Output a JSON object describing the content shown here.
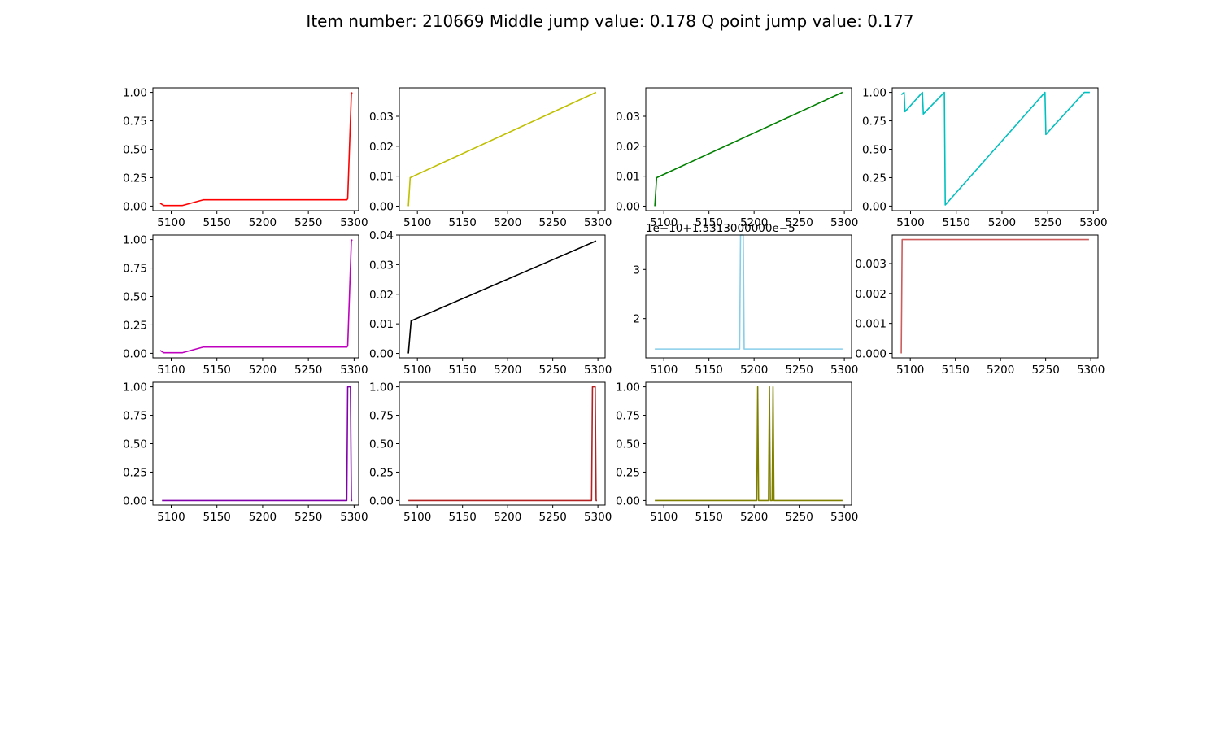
{
  "figure": {
    "title": "Item number: 210669  Middle jump value: 0.178  Q point jump value: 0.177"
  },
  "chart_data": [
    {
      "type": "line",
      "color": "#ff0000",
      "xlim": [
        5080,
        5305
      ],
      "ylim": [
        -0.04,
        1.04
      ],
      "xticks": [
        5100,
        5150,
        5200,
        5250,
        5300
      ],
      "yticks": [
        0.0,
        0.25,
        0.5,
        0.75,
        1.0
      ],
      "ytick_labels": [
        "0.00",
        "0.25",
        "0.50",
        "0.75",
        "1.00"
      ],
      "offset_label": "",
      "series": [
        {
          "x": [
            5088,
            5092,
            5112,
            5135,
            5292,
            5293,
            5297,
            5298
          ],
          "y": [
            0.025,
            0.005,
            0.005,
            0.055,
            0.055,
            0.065,
            0.99,
            1.0
          ]
        }
      ]
    },
    {
      "type": "line",
      "color": "#bfbf00",
      "xlim": [
        5080,
        5308
      ],
      "ylim": [
        -0.0015,
        0.0395
      ],
      "xticks": [
        5100,
        5150,
        5200,
        5250,
        5300
      ],
      "yticks": [
        0.0,
        0.01,
        0.02,
        0.03
      ],
      "ytick_labels": [
        "0.00",
        "0.01",
        "0.02",
        "0.03"
      ],
      "offset_label": "",
      "series": [
        {
          "x": [
            5090,
            5092,
            5298
          ],
          "y": [
            0.0,
            0.0095,
            0.038
          ]
        }
      ]
    },
    {
      "type": "line",
      "color": "#008000",
      "xlim": [
        5080,
        5308
      ],
      "ylim": [
        -0.0015,
        0.0395
      ],
      "xticks": [
        5100,
        5150,
        5200,
        5250,
        5300
      ],
      "yticks": [
        0.0,
        0.01,
        0.02,
        0.03
      ],
      "ytick_labels": [
        "0.00",
        "0.01",
        "0.02",
        "0.03"
      ],
      "offset_label": "",
      "series": [
        {
          "x": [
            5090,
            5092,
            5298
          ],
          "y": [
            0.0,
            0.0095,
            0.038
          ]
        }
      ]
    },
    {
      "type": "line",
      "color": "#00bfbf",
      "xlim": [
        5080,
        5305
      ],
      "ylim": [
        -0.04,
        1.04
      ],
      "xticks": [
        5100,
        5150,
        5200,
        5250,
        5300
      ],
      "yticks": [
        0.0,
        0.25,
        0.5,
        0.75,
        1.0
      ],
      "ytick_labels": [
        "0.00",
        "0.25",
        "0.50",
        "0.75",
        "1.00"
      ],
      "offset_label": "",
      "series": [
        {
          "x": [
            5090,
            5093,
            5094,
            5113,
            5114,
            5137,
            5138,
            5247,
            5248,
            5290,
            5296
          ],
          "y": [
            0.98,
            1.0,
            0.83,
            1.0,
            0.81,
            1.0,
            0.01,
            1.0,
            0.63,
            1.0,
            1.0
          ]
        }
      ]
    },
    {
      "type": "line",
      "color": "#bf00bf",
      "xlim": [
        5080,
        5305
      ],
      "ylim": [
        -0.04,
        1.04
      ],
      "xticks": [
        5100,
        5150,
        5200,
        5250,
        5300
      ],
      "yticks": [
        0.0,
        0.25,
        0.5,
        0.75,
        1.0
      ],
      "ytick_labels": [
        "0.00",
        "0.25",
        "0.50",
        "0.75",
        "1.00"
      ],
      "offset_label": "",
      "series": [
        {
          "x": [
            5088,
            5092,
            5112,
            5135,
            5292,
            5293,
            5297,
            5298
          ],
          "y": [
            0.025,
            0.005,
            0.005,
            0.055,
            0.055,
            0.065,
            0.99,
            1.0
          ]
        }
      ]
    },
    {
      "type": "line",
      "color": "#000000",
      "xlim": [
        5080,
        5308
      ],
      "ylim": [
        -0.0015,
        0.04
      ],
      "xticks": [
        5100,
        5150,
        5200,
        5250,
        5300
      ],
      "yticks": [
        0.0,
        0.01,
        0.02,
        0.03,
        0.04
      ],
      "ytick_labels": [
        "0.00",
        "0.01",
        "0.02",
        "0.03",
        "0.04"
      ],
      "offset_label": "",
      "series": [
        {
          "x": [
            5090,
            5093,
            5298
          ],
          "y": [
            0.0,
            0.011,
            0.038
          ]
        }
      ]
    },
    {
      "type": "line",
      "color": "#87ceeb",
      "xlim": [
        5080,
        5308
      ],
      "ylim": [
        1.2,
        3.7
      ],
      "xticks": [
        5100,
        5150,
        5200,
        5250,
        5300
      ],
      "yticks": [
        2,
        3
      ],
      "ytick_labels": [
        "2",
        "3"
      ],
      "offset_label": "1e−10+1.5313000000e−5",
      "series": [
        {
          "x": [
            5090,
            5184,
            5185,
            5188,
            5189,
            5298
          ],
          "y": [
            1.38,
            1.38,
            3.7,
            3.7,
            1.38,
            1.38
          ]
        }
      ]
    },
    {
      "type": "line",
      "color": "#cd5c5c",
      "xlim": [
        5080,
        5308
      ],
      "ylim": [
        -0.00015,
        0.00395
      ],
      "xticks": [
        5100,
        5150,
        5200,
        5250,
        5300
      ],
      "yticks": [
        0.0,
        0.001,
        0.002,
        0.003
      ],
      "ytick_labels": [
        "0.000",
        "0.001",
        "0.002",
        "0.003"
      ],
      "offset_label": "",
      "series": [
        {
          "x": [
            5090,
            5091,
            5298
          ],
          "y": [
            0.0,
            0.0038,
            0.0038
          ]
        }
      ]
    },
    {
      "type": "line",
      "color": "#8000aa",
      "xlim": [
        5080,
        5305
      ],
      "ylim": [
        -0.04,
        1.04
      ],
      "xticks": [
        5100,
        5150,
        5200,
        5250,
        5300
      ],
      "yticks": [
        0.0,
        0.25,
        0.5,
        0.75,
        1.0
      ],
      "ytick_labels": [
        "0.00",
        "0.25",
        "0.50",
        "0.75",
        "1.00"
      ],
      "offset_label": "",
      "series": [
        {
          "x": [
            5090,
            5292,
            5293,
            5296,
            5297,
            5298
          ],
          "y": [
            0.0,
            0.0,
            1.0,
            1.0,
            0.0,
            0.0
          ]
        }
      ]
    },
    {
      "type": "line",
      "color": "#b22222",
      "xlim": [
        5080,
        5308
      ],
      "ylim": [
        -0.04,
        1.04
      ],
      "xticks": [
        5100,
        5150,
        5200,
        5250,
        5300
      ],
      "yticks": [
        0.0,
        0.25,
        0.5,
        0.75,
        1.0
      ],
      "ytick_labels": [
        "0.00",
        "0.25",
        "0.50",
        "0.75",
        "1.00"
      ],
      "offset_label": "",
      "series": [
        {
          "x": [
            5090,
            5293,
            5294,
            5297,
            5298,
            5299
          ],
          "y": [
            0.0,
            0.0,
            1.0,
            1.0,
            0.0,
            0.0
          ]
        }
      ]
    },
    {
      "type": "line",
      "color": "#808000",
      "xlim": [
        5080,
        5308
      ],
      "ylim": [
        -0.04,
        1.04
      ],
      "xticks": [
        5100,
        5150,
        5200,
        5250,
        5300
      ],
      "yticks": [
        0.0,
        0.25,
        0.5,
        0.75,
        1.0
      ],
      "ytick_labels": [
        "0.00",
        "0.25",
        "0.50",
        "0.75",
        "1.00"
      ],
      "offset_label": "",
      "series": [
        {
          "x": [
            5090,
            5203,
            5204,
            5205,
            5216,
            5217,
            5218,
            5220,
            5221,
            5222,
            5298
          ],
          "y": [
            0.0,
            0.0,
            1.0,
            0.0,
            0.0,
            1.0,
            0.0,
            0.0,
            1.0,
            0.0,
            0.0
          ]
        }
      ]
    }
  ]
}
